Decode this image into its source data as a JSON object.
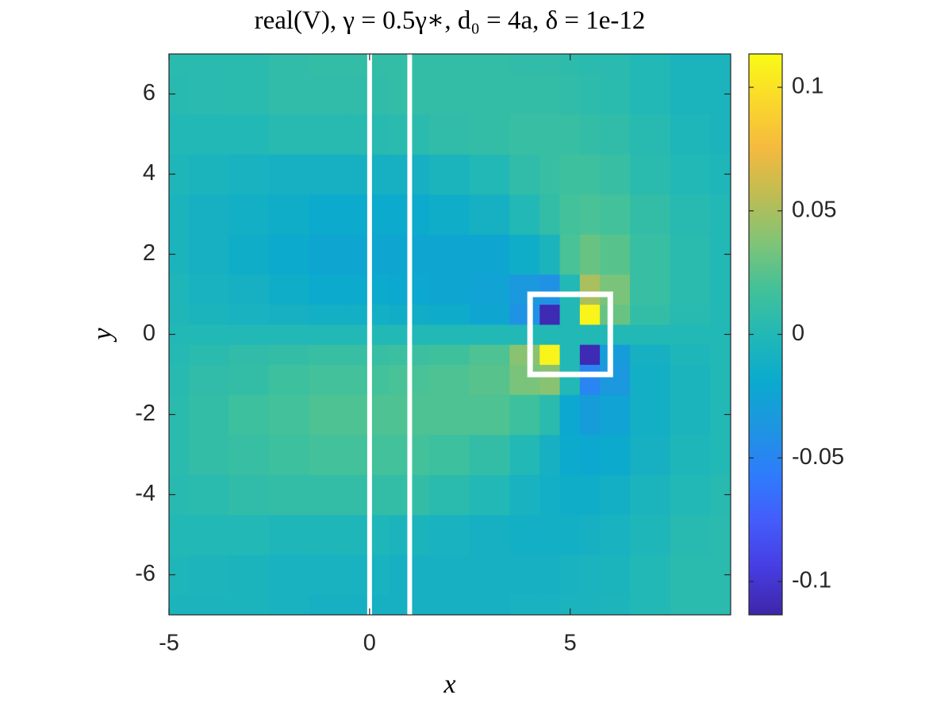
{
  "chart_data": {
    "type": "heatmap",
    "title": "real(V), γ = 0.5γ∗, d₀ = 4a, δ = 1e-12",
    "xlabel": "x",
    "ylabel": "y",
    "colormap": "parula",
    "xlim": [
      -5,
      9
    ],
    "ylim": [
      -7,
      7
    ],
    "xticks": [
      -5,
      0,
      5
    ],
    "yticks": [
      -6,
      -4,
      -2,
      0,
      2,
      4,
      6
    ],
    "clim": [
      -0.1135,
      0.1135
    ],
    "cticks": [
      -0.1,
      -0.05,
      0,
      0.05,
      0.1
    ],
    "x": [
      -5,
      -4,
      -3,
      -2,
      -1,
      0,
      1,
      2,
      3,
      4,
      4.5,
      5,
      5.5,
      6,
      7,
      8,
      9
    ],
    "y": [
      -7,
      -6,
      -5,
      -4,
      -3,
      -2,
      -1,
      -0.5,
      0,
      0.5,
      1,
      2,
      3,
      4,
      5,
      6,
      7
    ],
    "z": [
      [
        -0.005,
        -0.005,
        -0.005,
        -0.008,
        -0.01,
        -0.01,
        -0.01,
        -0.01,
        -0.01,
        -0.008,
        -0.008,
        -0.006,
        -0.005,
        -0.004,
        0,
        0.005,
        0.005
      ],
      [
        -0.003,
        -0.004,
        -0.005,
        -0.008,
        -0.008,
        -0.008,
        -0.01,
        -0.01,
        -0.01,
        -0.01,
        -0.01,
        -0.008,
        -0.006,
        -0.005,
        0,
        0.005,
        0.005
      ],
      [
        0,
        0,
        0,
        -0.003,
        -0.003,
        -0.003,
        -0.005,
        -0.008,
        -0.01,
        -0.012,
        -0.012,
        -0.012,
        -0.01,
        -0.008,
        -0.003,
        0.003,
        0.005
      ],
      [
        0.003,
        0.005,
        0.008,
        0.01,
        0.01,
        0.01,
        0.01,
        0.005,
        0,
        -0.008,
        -0.012,
        -0.015,
        -0.015,
        -0.012,
        -0.005,
        0,
        0.003
      ],
      [
        0.005,
        0.01,
        0.012,
        0.015,
        0.018,
        0.018,
        0.018,
        0.015,
        0.01,
        0,
        -0.01,
        -0.018,
        -0.02,
        -0.018,
        -0.01,
        -0.003,
        0
      ],
      [
        0.005,
        0.01,
        0.015,
        0.018,
        0.022,
        0.022,
        0.022,
        0.022,
        0.022,
        0.015,
        0.005,
        -0.02,
        -0.03,
        -0.025,
        -0.012,
        -0.005,
        0
      ],
      [
        0.003,
        0.008,
        0.01,
        0.015,
        0.018,
        0.018,
        0.02,
        0.022,
        0.025,
        0.035,
        0.04,
        0,
        -0.05,
        -0.035,
        -0.012,
        -0.005,
        0
      ],
      [
        0.002,
        0.005,
        0.008,
        0.01,
        0.012,
        0.012,
        0.014,
        0.016,
        0.022,
        0.04,
        0.11,
        0,
        -0.11,
        -0.03,
        -0.01,
        -0.003,
        0
      ],
      [
        0,
        0,
        0,
        0,
        0,
        0,
        0,
        0,
        0,
        0,
        0,
        0,
        0,
        0,
        0,
        0,
        0
      ],
      [
        -0.002,
        -0.005,
        -0.008,
        -0.01,
        -0.012,
        -0.012,
        -0.014,
        -0.016,
        -0.022,
        -0.04,
        -0.11,
        0,
        0.11,
        0.03,
        0.01,
        0.003,
        0
      ],
      [
        -0.003,
        -0.008,
        -0.01,
        -0.015,
        -0.018,
        -0.018,
        -0.02,
        -0.022,
        -0.025,
        -0.035,
        -0.04,
        0,
        0.05,
        0.035,
        0.012,
        0.005,
        0
      ],
      [
        -0.005,
        -0.01,
        -0.015,
        -0.018,
        -0.022,
        -0.022,
        -0.022,
        -0.022,
        -0.022,
        -0.015,
        -0.005,
        0.02,
        0.03,
        0.025,
        0.012,
        0.005,
        0
      ],
      [
        -0.005,
        -0.01,
        -0.012,
        -0.015,
        -0.018,
        -0.018,
        -0.018,
        -0.015,
        -0.01,
        0,
        0.01,
        0.018,
        0.02,
        0.018,
        0.01,
        0.003,
        0
      ],
      [
        -0.003,
        -0.005,
        -0.008,
        -0.01,
        -0.01,
        -0.01,
        -0.01,
        -0.005,
        0,
        0.008,
        0.012,
        0.015,
        0.015,
        0.012,
        0.005,
        0,
        -0.003
      ],
      [
        0,
        0,
        0,
        0.003,
        0.003,
        0.003,
        0.005,
        0.008,
        0.01,
        0.012,
        0.012,
        0.012,
        0.01,
        0.008,
        0.003,
        -0.003,
        -0.005
      ],
      [
        0.003,
        0.004,
        0.005,
        0.008,
        0.008,
        0.008,
        0.01,
        0.01,
        0.01,
        0.01,
        0.01,
        0.008,
        0.006,
        0.005,
        0,
        -0.005,
        -0.005
      ],
      [
        0.005,
        0.005,
        0.005,
        0.008,
        0.01,
        0.01,
        0.01,
        0.01,
        0.01,
        0.008,
        0.008,
        0.006,
        0.005,
        0.004,
        0,
        -0.005,
        -0.005
      ]
    ],
    "vlines": [
      0,
      1
    ],
    "box": {
      "x": [
        4,
        6
      ],
      "y": [
        -1,
        1
      ]
    },
    "overlay_color": "#ffffff"
  }
}
